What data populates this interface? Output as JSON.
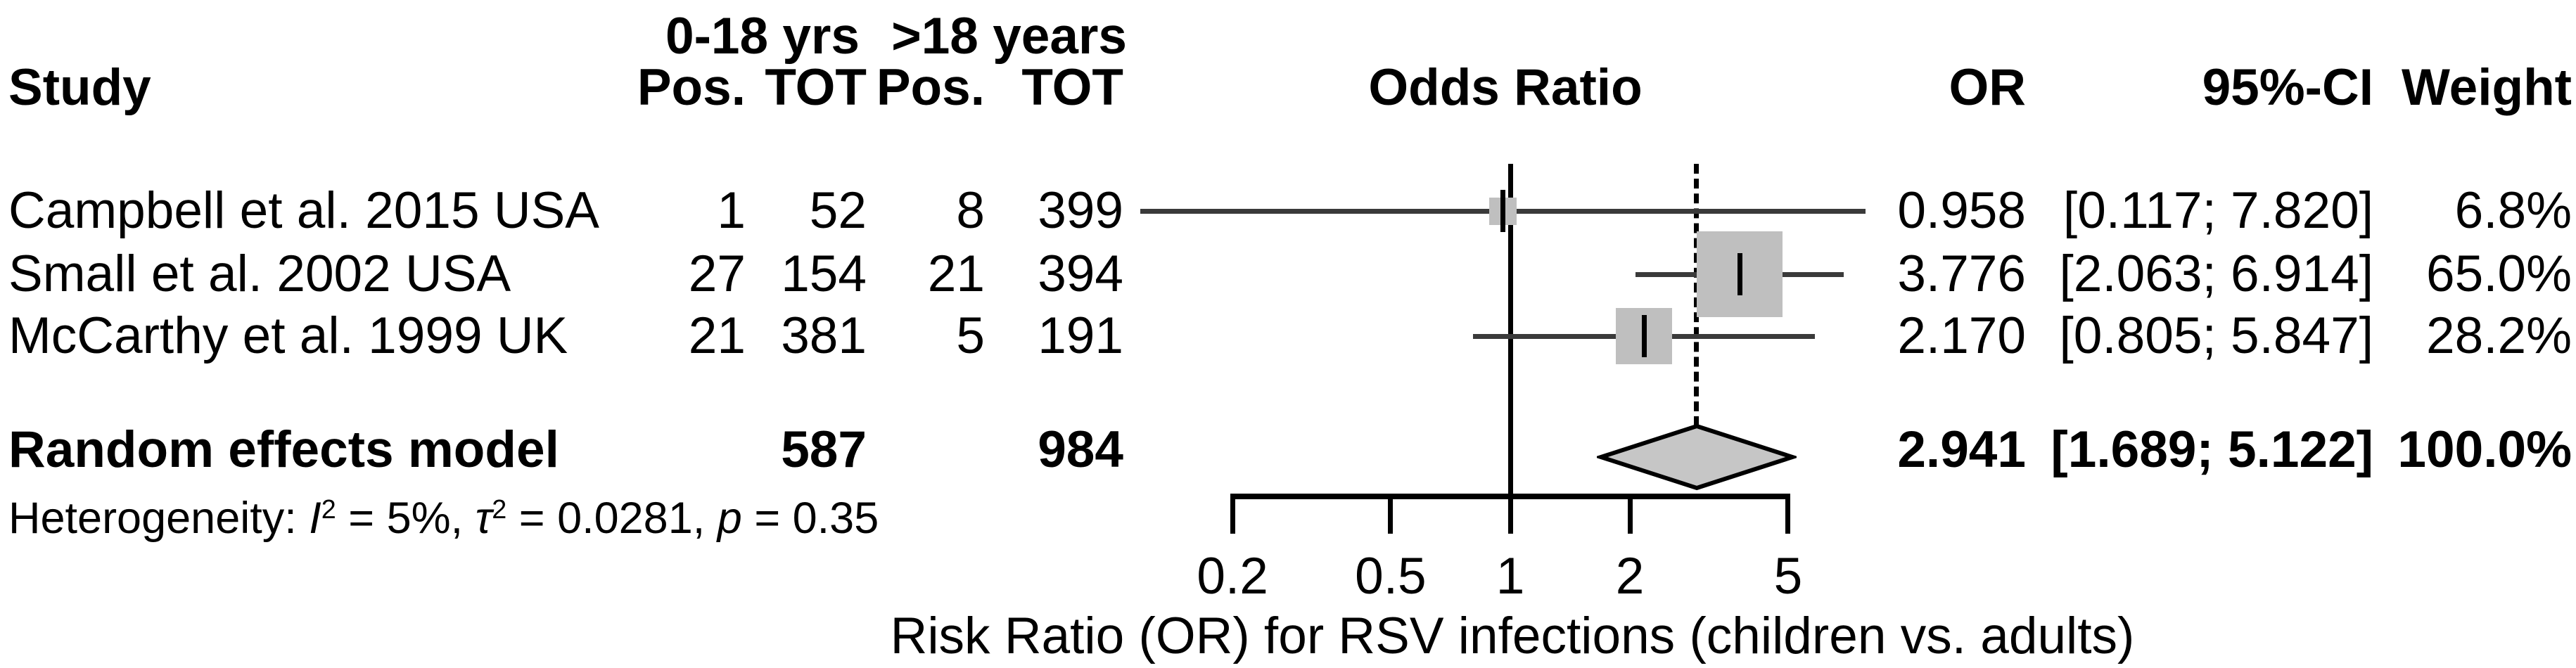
{
  "header": {
    "group1": "0-18 yrs",
    "group2": ">18 years",
    "study": "Study",
    "pos1": "Pos.",
    "tot1": "TOT",
    "pos2": "Pos.",
    "tot2": "TOT",
    "plot_title": "Odds Ratio",
    "or": "OR",
    "ci": "95%-CI",
    "weight": "Weight"
  },
  "table": {
    "rows": [
      {
        "study": "Campbell et al. 2015 USA",
        "pos1": "1",
        "tot1": "52",
        "pos2": "8",
        "tot2": "399",
        "or": "0.958",
        "ci": "[0.117; 7.820]",
        "weight": "6.8%"
      },
      {
        "study": "Small et al. 2002 USA",
        "pos1": "27",
        "tot1": "154",
        "pos2": "21",
        "tot2": "394",
        "or": "3.776",
        "ci": "[2.063; 6.914]",
        "weight": "65.0%"
      },
      {
        "study": "McCarthy et al. 1999 UK",
        "pos1": "21",
        "tot1": "381",
        "pos2": "5",
        "tot2": "191",
        "or": "2.170",
        "ci": "[0.805; 5.847]",
        "weight": "28.2%"
      }
    ],
    "summary": {
      "label": "Random effects model",
      "tot1": "587",
      "tot2": "984",
      "or": "2.941",
      "ci": "[1.689; 5.122]",
      "weight": "100.0%"
    }
  },
  "heterogeneity": {
    "segments": [
      {
        "text": "Heterogeneity: ",
        "style": "plain"
      },
      {
        "text": "I",
        "style": "italic"
      },
      {
        "text": "2",
        "style": "sup"
      },
      {
        "text": " = 5%, ",
        "style": "plain"
      },
      {
        "text": "τ",
        "style": "italic"
      },
      {
        "text": "2",
        "style": "sup"
      },
      {
        "text": " = 0.0281, ",
        "style": "plain"
      },
      {
        "text": "p",
        "style": "italic"
      },
      {
        "text": " = 0.35",
        "style": "plain"
      }
    ]
  },
  "axis": {
    "label": "Risk Ratio (OR) for RSV infections (children vs. adults)"
  },
  "colors": {
    "text": "#000000",
    "ci_line": "#3a3a3a",
    "square": "#bfbfbf",
    "diamond_fill": "#c6c6c6",
    "diamond_stroke": "#000000",
    "axis": "#000000"
  },
  "chart_data": {
    "type": "scatter",
    "subtype": "forest-plot",
    "x_scale": "log",
    "x_ticks": [
      0.2,
      0.5,
      1,
      2,
      5
    ],
    "xlim": [
      0.2,
      5
    ],
    "xlabel": "Risk Ratio (OR) for RSV infections (children vs. adults)",
    "no_effect_line_x": 1,
    "summary_line_x": 2.941,
    "points": [
      {
        "study": "Campbell et al. 2015 USA",
        "or": 0.958,
        "ci_low": 0.117,
        "ci_high": 7.82,
        "weight_pct": 6.8,
        "pos_children": 1,
        "tot_children": 52,
        "pos_adults": 8,
        "tot_adults": 399
      },
      {
        "study": "Small et al. 2002 USA",
        "or": 3.776,
        "ci_low": 2.063,
        "ci_high": 6.914,
        "weight_pct": 65.0,
        "pos_children": 27,
        "tot_children": 154,
        "pos_adults": 21,
        "tot_adults": 394
      },
      {
        "study": "McCarthy et al. 1999 UK",
        "or": 2.17,
        "ci_low": 0.805,
        "ci_high": 5.847,
        "weight_pct": 28.2,
        "pos_children": 21,
        "tot_children": 381,
        "pos_adults": 5,
        "tot_adults": 191
      }
    ],
    "summary": {
      "label": "Random effects model",
      "or": 2.941,
      "ci_low": 1.689,
      "ci_high": 5.122,
      "weight_pct": 100.0,
      "tot_children": 587,
      "tot_adults": 984
    },
    "heterogeneity": {
      "I2": "5%",
      "tau2": 0.0281,
      "p": 0.35
    }
  }
}
